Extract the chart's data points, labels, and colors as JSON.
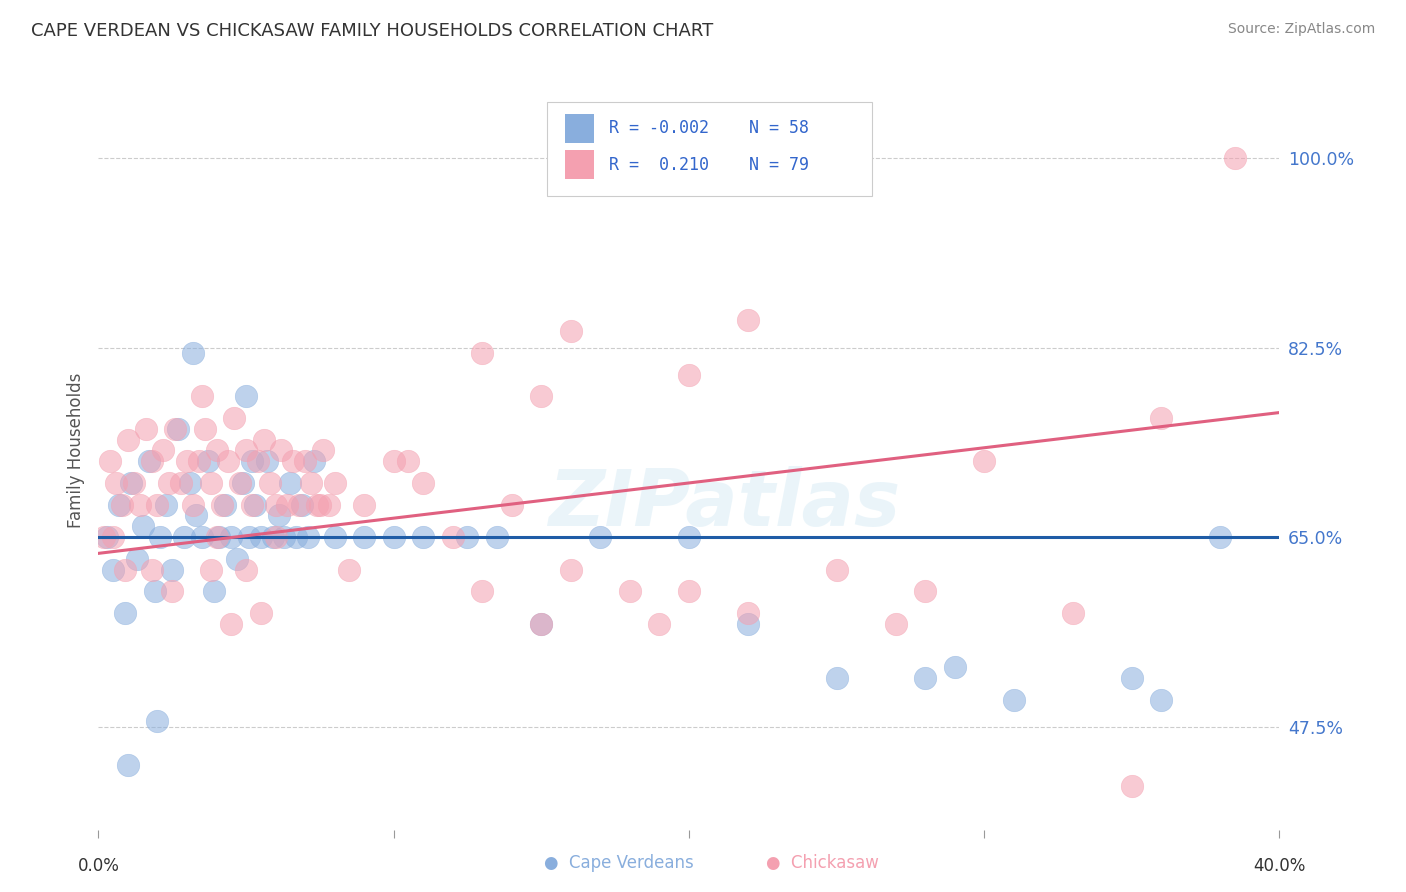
{
  "title": "CAPE VERDEAN VS CHICKASAW FAMILY HOUSEHOLDS CORRELATION CHART",
  "source": "Source: ZipAtlas.com",
  "ylabel": "Family Households",
  "yticks": [
    47.5,
    65.0,
    82.5,
    100.0
  ],
  "ytick_labels": [
    "47.5%",
    "65.0%",
    "82.5%",
    "100.0%"
  ],
  "xmin": 0.0,
  "xmax": 40.0,
  "ymin": 38.0,
  "ymax": 108.0,
  "blue_color": "#89AEDD",
  "pink_color": "#F4A0B0",
  "blue_line_color": "#1F5CA6",
  "pink_line_color": "#E06080",
  "legend_label_blue": "Cape Verdeans",
  "legend_label_pink": "Chickasaw",
  "watermark": "ZIPatlas",
  "blue_line_y0": 65.0,
  "blue_line_y1": 65.0,
  "pink_line_y0": 63.5,
  "pink_line_y1": 76.5,
  "blue_points_x": [
    0.3,
    0.5,
    0.7,
    0.9,
    1.1,
    1.3,
    1.5,
    1.7,
    1.9,
    2.1,
    2.3,
    2.5,
    2.7,
    2.9,
    3.1,
    3.3,
    3.5,
    3.7,
    3.9,
    4.1,
    4.3,
    4.5,
    4.7,
    4.9,
    5.1,
    5.3,
    5.5,
    5.7,
    5.9,
    6.1,
    6.3,
    6.5,
    6.7,
    6.9,
    7.1,
    7.3,
    8.0,
    9.0,
    10.0,
    11.0,
    12.5,
    13.5,
    15.0,
    17.0,
    20.0,
    22.0,
    25.0,
    28.0,
    29.0,
    31.0,
    35.0,
    36.0,
    38.0,
    5.0,
    5.2,
    3.2,
    2.0,
    1.0
  ],
  "blue_points_y": [
    65.0,
    62.0,
    68.0,
    58.0,
    70.0,
    63.0,
    66.0,
    72.0,
    60.0,
    65.0,
    68.0,
    62.0,
    75.0,
    65.0,
    70.0,
    67.0,
    65.0,
    72.0,
    60.0,
    65.0,
    68.0,
    65.0,
    63.0,
    70.0,
    65.0,
    68.0,
    65.0,
    72.0,
    65.0,
    67.0,
    65.0,
    70.0,
    65.0,
    68.0,
    65.0,
    72.0,
    65.0,
    65.0,
    65.0,
    65.0,
    65.0,
    65.0,
    57.0,
    65.0,
    65.0,
    57.0,
    52.0,
    52.0,
    53.0,
    50.0,
    52.0,
    50.0,
    65.0,
    78.0,
    72.0,
    82.0,
    48.0,
    44.0
  ],
  "pink_points_x": [
    0.2,
    0.4,
    0.6,
    0.8,
    1.0,
    1.2,
    1.4,
    1.6,
    1.8,
    2.0,
    2.2,
    2.4,
    2.6,
    2.8,
    3.0,
    3.2,
    3.4,
    3.6,
    3.8,
    4.0,
    4.2,
    4.4,
    4.6,
    4.8,
    5.0,
    5.2,
    5.4,
    5.6,
    5.8,
    6.0,
    6.2,
    6.4,
    6.6,
    6.8,
    7.0,
    7.2,
    7.4,
    7.6,
    7.8,
    8.0,
    9.0,
    10.0,
    11.0,
    12.0,
    13.0,
    14.0,
    15.0,
    16.0,
    18.0,
    19.0,
    20.0,
    22.0,
    25.0,
    27.0,
    28.0,
    30.0,
    33.0,
    35.0,
    36.0,
    38.5,
    22.0,
    20.0,
    16.0,
    15.0,
    13.0,
    8.5,
    6.0,
    5.5,
    5.0,
    4.5,
    4.0,
    3.8,
    2.5,
    1.8,
    0.9,
    0.5,
    3.5,
    7.5,
    10.5
  ],
  "pink_points_y": [
    65.0,
    72.0,
    70.0,
    68.0,
    74.0,
    70.0,
    68.0,
    75.0,
    72.0,
    68.0,
    73.0,
    70.0,
    75.0,
    70.0,
    72.0,
    68.0,
    72.0,
    75.0,
    70.0,
    73.0,
    68.0,
    72.0,
    76.0,
    70.0,
    73.0,
    68.0,
    72.0,
    74.0,
    70.0,
    68.0,
    73.0,
    68.0,
    72.0,
    68.0,
    72.0,
    70.0,
    68.0,
    73.0,
    68.0,
    70.0,
    68.0,
    72.0,
    70.0,
    65.0,
    60.0,
    68.0,
    57.0,
    62.0,
    60.0,
    57.0,
    60.0,
    58.0,
    62.0,
    57.0,
    60.0,
    72.0,
    58.0,
    42.0,
    76.0,
    100.0,
    85.0,
    80.0,
    84.0,
    78.0,
    82.0,
    62.0,
    65.0,
    58.0,
    62.0,
    57.0,
    65.0,
    62.0,
    60.0,
    62.0,
    62.0,
    65.0,
    78.0,
    68.0,
    72.0
  ]
}
